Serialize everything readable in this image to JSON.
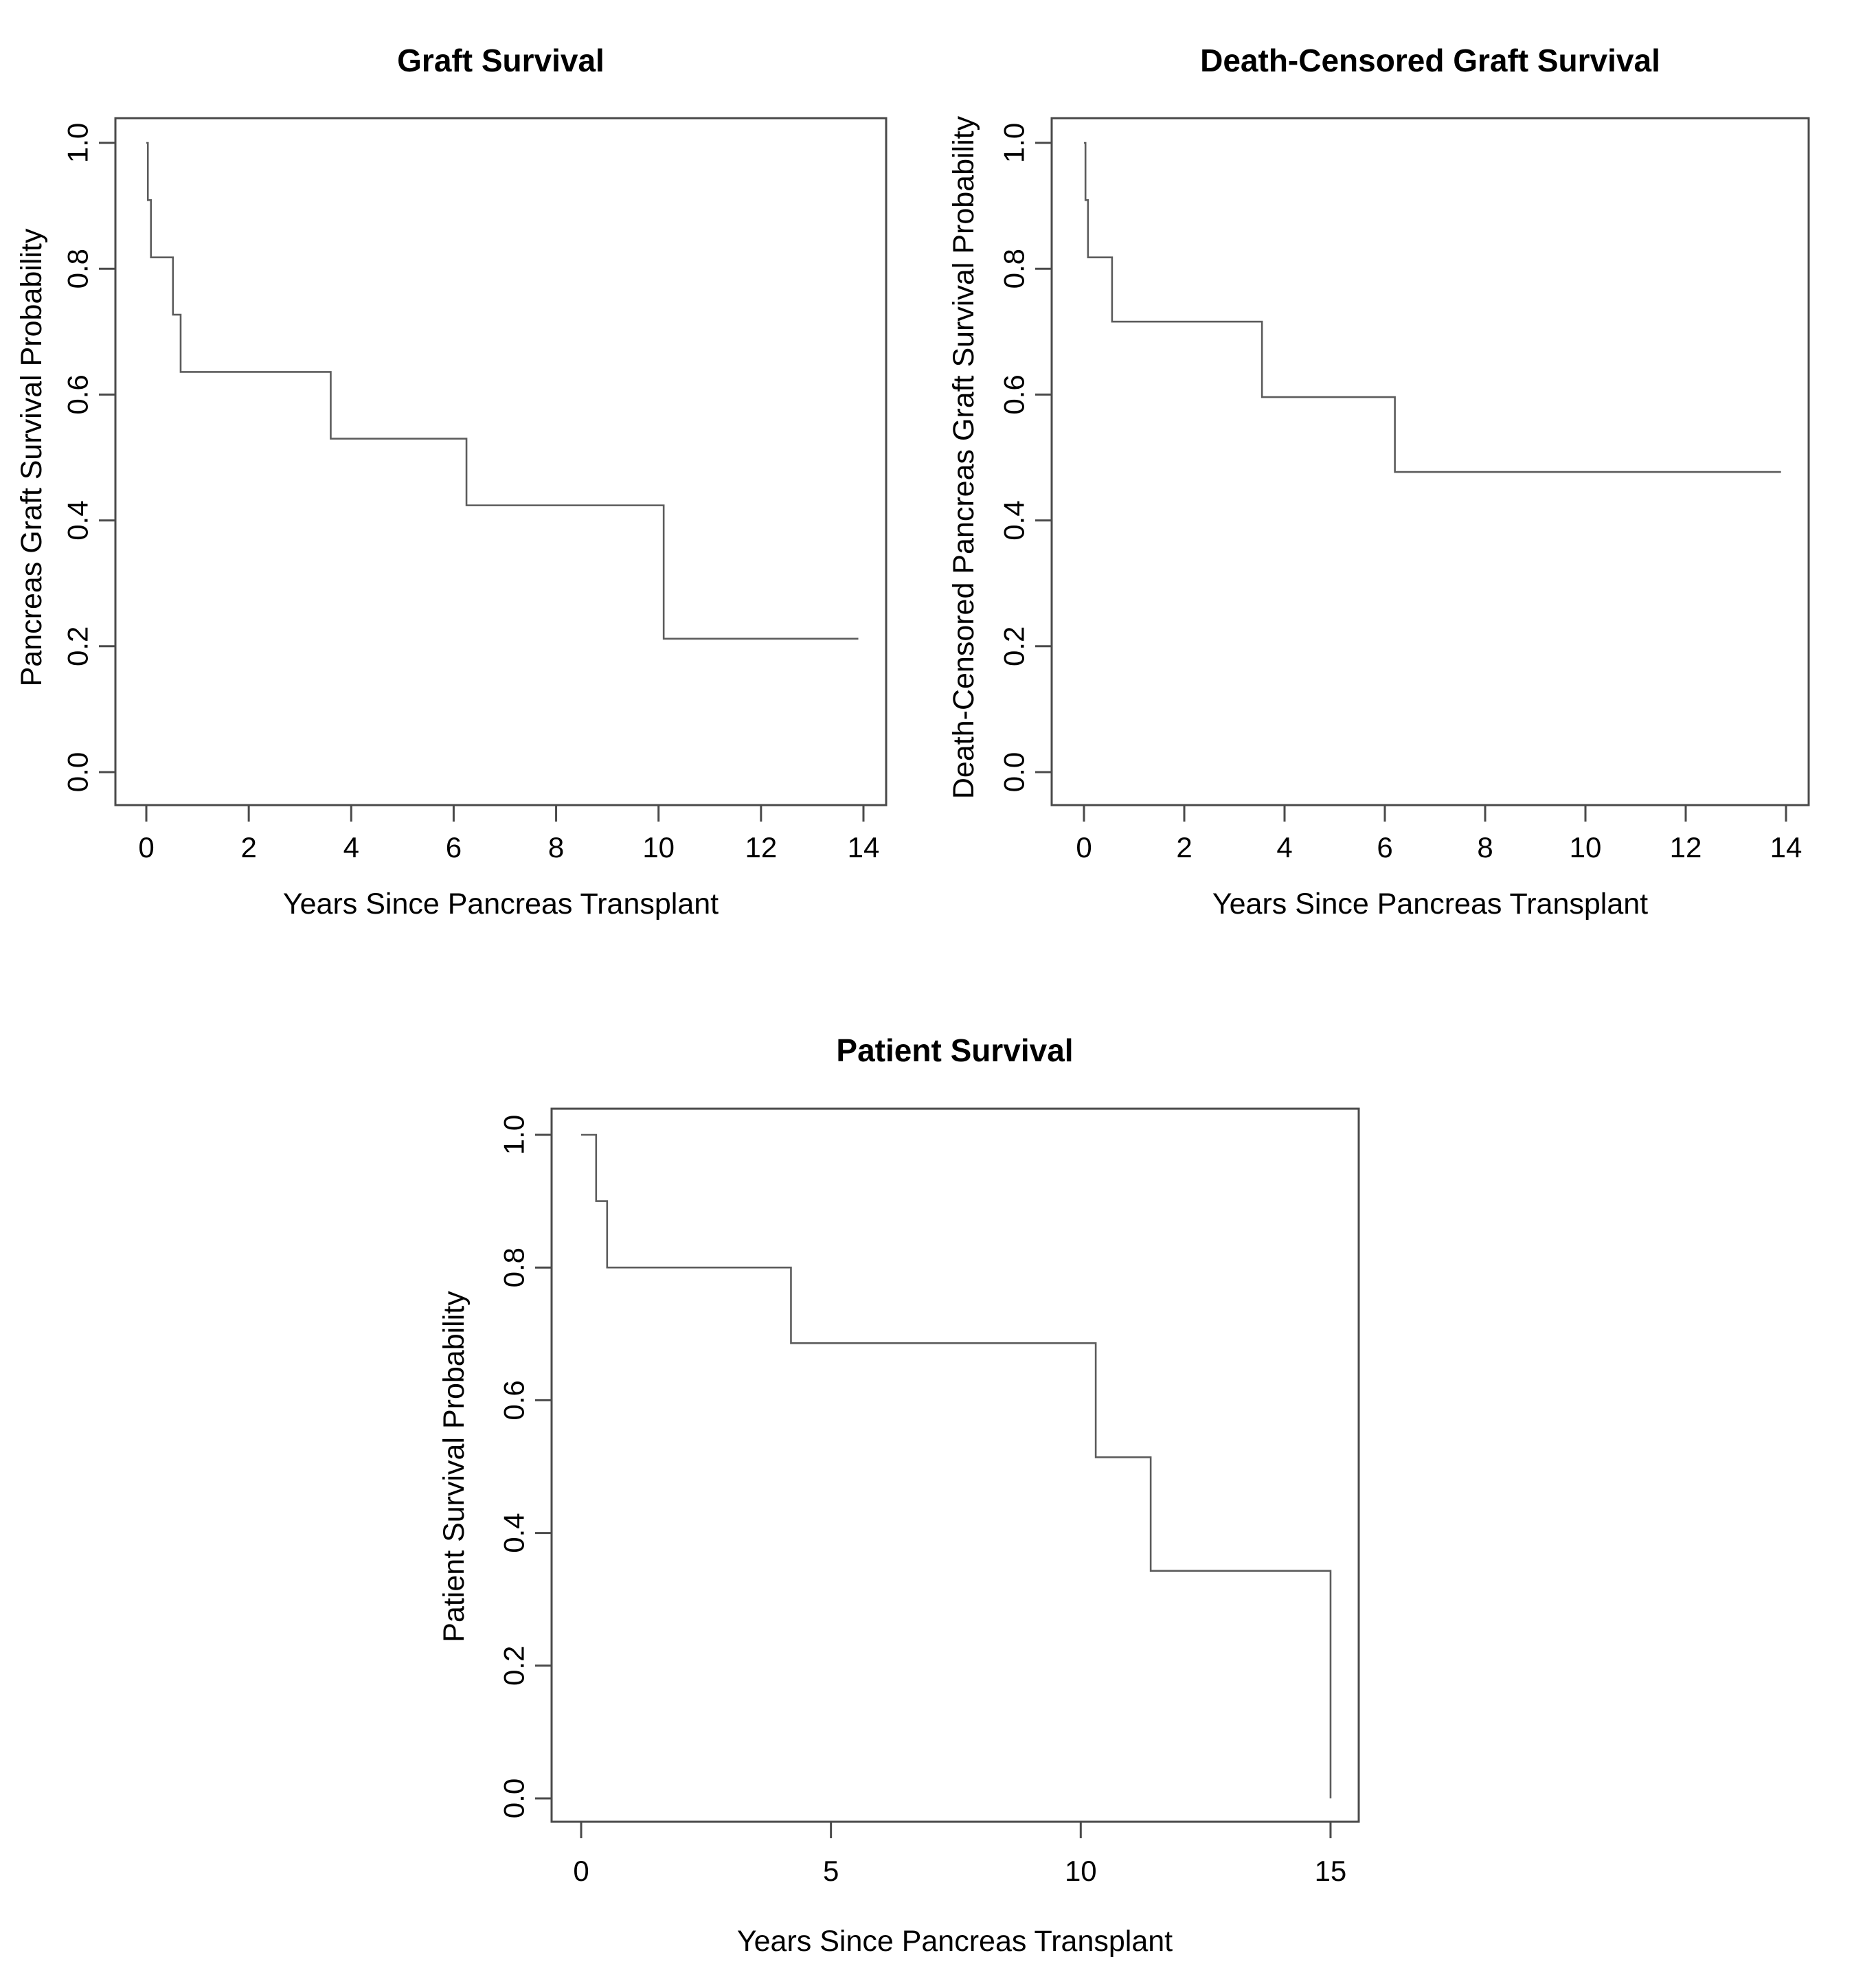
{
  "page": {
    "background": "#ffffff",
    "text_color": "#000000",
    "axis_color": "#4a4a4a",
    "curve_color": "#5c5c5c"
  },
  "chart_data": [
    {
      "id": "graft-survival",
      "type": "line",
      "subtype": "kaplan-meier-step",
      "title": "Graft Survival",
      "xlabel": "Years Since Pancreas Transplant",
      "ylabel": "Pancreas Graft Survival Probability",
      "xlim": [
        0,
        14
      ],
      "ylim": [
        0.0,
        1.0
      ],
      "xticks": [
        0,
        2,
        4,
        6,
        8,
        10,
        12,
        14
      ],
      "x_tick_labels": [
        "0",
        "2",
        "4",
        "6",
        "8",
        "10",
        "12",
        "14"
      ],
      "yticks": [
        0.0,
        0.2,
        0.4,
        0.6,
        0.8,
        1.0
      ],
      "y_tick_labels": [
        "0.0",
        "0.2",
        "0.4",
        "0.6",
        "0.8",
        "1.0"
      ],
      "grid": false,
      "legend": null,
      "steps": [
        [
          0.0,
          1.0
        ],
        [
          0.03,
          0.909
        ],
        [
          0.09,
          0.818
        ],
        [
          0.52,
          0.727
        ],
        [
          0.67,
          0.636
        ],
        [
          3.6,
          0.53
        ],
        [
          6.25,
          0.424
        ],
        [
          10.1,
          0.212
        ]
      ],
      "end_time": 13.9
    },
    {
      "id": "death-censored-graft-survival",
      "type": "line",
      "subtype": "kaplan-meier-step",
      "title": "Death-Censored Graft Survival",
      "xlabel": "Years Since Pancreas Transplant",
      "ylabel": "Death-Censored Pancreas Graft Survival Probability",
      "xlim": [
        0,
        14
      ],
      "ylim": [
        0.0,
        1.0
      ],
      "xticks": [
        0,
        2,
        4,
        6,
        8,
        10,
        12,
        14
      ],
      "x_tick_labels": [
        "0",
        "2",
        "4",
        "6",
        "8",
        "10",
        "12",
        "14"
      ],
      "yticks": [
        0.0,
        0.2,
        0.4,
        0.6,
        0.8,
        1.0
      ],
      "y_tick_labels": [
        "0.0",
        "0.2",
        "0.4",
        "0.6",
        "0.8",
        "1.0"
      ],
      "grid": false,
      "legend": null,
      "steps": [
        [
          0.0,
          1.0
        ],
        [
          0.03,
          0.909
        ],
        [
          0.08,
          0.818
        ],
        [
          0.56,
          0.716
        ],
        [
          3.55,
          0.596
        ],
        [
          6.2,
          0.477
        ]
      ],
      "end_time": 13.9
    },
    {
      "id": "patient-survival",
      "type": "line",
      "subtype": "kaplan-meier-step",
      "title": "Patient Survival",
      "xlabel": "Years Since Pancreas Transplant",
      "ylabel": "Patient Survival Probability",
      "xlim": [
        0,
        15
      ],
      "ylim": [
        0.0,
        1.0
      ],
      "xticks": [
        0,
        5,
        10,
        15
      ],
      "x_tick_labels": [
        "0",
        "5",
        "10",
        "15"
      ],
      "yticks": [
        0.0,
        0.2,
        0.4,
        0.6,
        0.8,
        1.0
      ],
      "y_tick_labels": [
        "0.0",
        "0.2",
        "0.4",
        "0.6",
        "0.8",
        "1.0"
      ],
      "grid": false,
      "legend": null,
      "steps": [
        [
          0.0,
          1.0
        ],
        [
          0.3,
          0.9
        ],
        [
          0.52,
          0.8
        ],
        [
          4.2,
          0.686
        ],
        [
          10.3,
          0.514
        ],
        [
          11.4,
          0.343
        ],
        [
          15.0,
          0.0
        ]
      ],
      "end_time": 15.0
    }
  ]
}
